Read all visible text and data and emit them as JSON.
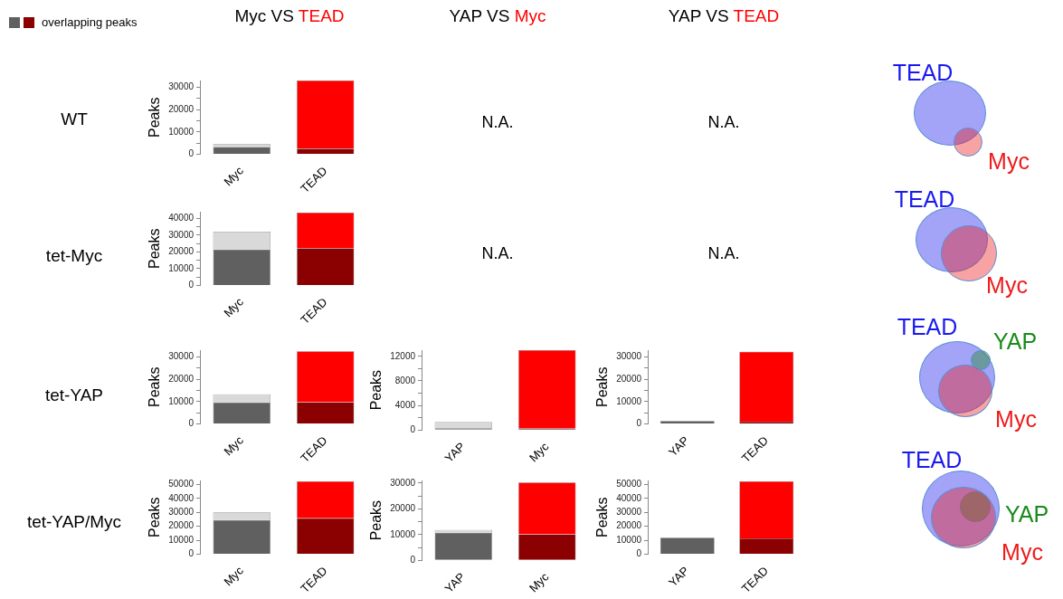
{
  "chart_data": [
    {
      "type": "other",
      "annotations": [
        "overlapping peaks",
        "Myc VS TEAD",
        "YAP VS Myc",
        "YAP VS TEAD",
        "WT",
        "tet-Myc",
        "tet-YAP",
        "tet-YAP/Myc",
        "N.A.",
        "N.A.",
        "N.A.",
        "N.A."
      ],
      "colors": [
        "#606060",
        "#8b0000"
      ]
    },
    {
      "type": "bar",
      "stacked": true,
      "categories": [
        "Myc",
        "TEAD"
      ],
      "ylabel": "Peaks",
      "ylim": [
        0,
        33000
      ],
      "yticks": [
        0,
        {
          "value": 5000,
          "label": null
        },
        10000,
        {
          "value": 15000,
          "label": null
        },
        20000,
        {
          "value": 25000,
          "label": null
        },
        30000
      ],
      "series": [
        {
          "colors": [
            "#606060",
            "#8b0000"
          ],
          "values": [
            3200,
            2500
          ]
        },
        {
          "colors": [
            "#d9d9d9",
            "#ff0000"
          ],
          "values": [
            1300,
            30500
          ]
        }
      ]
    },
    {
      "type": "bar",
      "stacked": true,
      "categories": [
        "Myc",
        "TEAD"
      ],
      "ylabel": "Peaks",
      "ylim": [
        0,
        44000
      ],
      "yticks": [
        0,
        {
          "value": 5000,
          "label": null
        },
        10000,
        {
          "value": 15000,
          "label": null
        },
        20000,
        {
          "value": 25000,
          "label": null
        },
        30000,
        {
          "value": 35000,
          "label": null
        },
        40000
      ],
      "series": [
        {
          "colors": [
            "#606060",
            "#8b0000"
          ],
          "values": [
            21400,
            22300
          ]
        },
        {
          "colors": [
            "#d9d9d9",
            "#ff0000"
          ],
          "values": [
            10700,
            21200
          ]
        }
      ]
    },
    {
      "type": "bar",
      "stacked": true,
      "categories": [
        "Myc",
        "TEAD"
      ],
      "ylabel": "Peaks",
      "ylim": [
        0,
        33000
      ],
      "yticks": [
        0,
        {
          "value": 5000,
          "label": null
        },
        10000,
        {
          "value": 15000,
          "label": null
        },
        20000,
        {
          "value": 25000,
          "label": null
        },
        30000
      ],
      "series": [
        {
          "colors": [
            "#606060",
            "#8b0000"
          ],
          "values": [
            9600,
            9700
          ]
        },
        {
          "colors": [
            "#d9d9d9",
            "#ff0000"
          ],
          "values": [
            3600,
            22800
          ]
        }
      ]
    },
    {
      "type": "bar",
      "stacked": true,
      "categories": [
        "YAP",
        "Myc"
      ],
      "ylabel": "Peaks",
      "ylim": [
        0,
        13000
      ],
      "yticks": [
        0,
        {
          "value": 2000,
          "label": null
        },
        4000,
        {
          "value": 6000,
          "label": null
        },
        8000,
        {
          "value": 10000,
          "label": null
        },
        12000
      ],
      "series": [
        {
          "colors": [
            "#606060",
            "#8b0000"
          ],
          "values": [
            300,
            300
          ]
        },
        {
          "colors": [
            "#d9d9d9",
            "#ff0000"
          ],
          "values": [
            1000,
            12700
          ]
        }
      ]
    },
    {
      "type": "bar",
      "stacked": true,
      "categories": [
        "YAP",
        "TEAD"
      ],
      "ylabel": "Peaks",
      "ylim": [
        0,
        33000
      ],
      "yticks": [
        0,
        {
          "value": 5000,
          "label": null
        },
        10000,
        {
          "value": 15000,
          "label": null
        },
        20000,
        {
          "value": 25000,
          "label": null
        },
        30000
      ],
      "series": [
        {
          "colors": [
            "#606060",
            "#8b0000"
          ],
          "values": [
            1300,
            1000
          ]
        },
        {
          "colors": [
            "#d9d9d9",
            "#ff0000"
          ],
          "values": [
            null,
            31300
          ]
        }
      ]
    },
    {
      "type": "bar",
      "stacked": true,
      "categories": [
        "Myc",
        "TEAD"
      ],
      "ylabel": "Peaks",
      "ylim": [
        0,
        53000
      ],
      "yticks": [
        0,
        10000,
        20000,
        30000,
        40000,
        50000
      ],
      "series": [
        {
          "colors": [
            "#606060",
            "#8b0000"
          ],
          "values": [
            24500,
            25900
          ]
        },
        {
          "colors": [
            "#d9d9d9",
            "#ff0000"
          ],
          "values": [
            5600,
            26400
          ]
        }
      ]
    },
    {
      "type": "bar",
      "stacked": true,
      "categories": [
        "YAP",
        "Myc"
      ],
      "ylabel": "Peaks",
      "ylim": [
        0,
        31000
      ],
      "yticks": [
        0,
        {
          "value": 5000,
          "label": null
        },
        10000,
        {
          "value": 15000,
          "label": null
        },
        20000,
        {
          "value": 25000,
          "label": null
        },
        30000
      ],
      "series": [
        {
          "colors": [
            "#606060",
            "#8b0000"
          ],
          "values": [
            10700,
            10100
          ]
        },
        {
          "colors": [
            "#d9d9d9",
            "#ff0000"
          ],
          "values": [
            1100,
            20100
          ]
        }
      ]
    },
    {
      "type": "bar",
      "stacked": true,
      "categories": [
        "YAP",
        "TEAD"
      ],
      "ylabel": "Peaks",
      "ylim": [
        0,
        53000
      ],
      "yticks": [
        0,
        10000,
        20000,
        30000,
        40000,
        50000
      ],
      "series": [
        {
          "colors": [
            "#606060",
            "#8b0000"
          ],
          "values": [
            11800,
            11400
          ]
        },
        {
          "colors": [
            "#d9d9d9",
            "#ff0000"
          ],
          "values": [
            null,
            40900
          ]
        }
      ]
    },
    {
      "type": "other",
      "annotations": [
        "TEAD",
        "Myc"
      ],
      "colors": [
        "#1a1aee",
        "#ee1a1a"
      ]
    },
    {
      "type": "other",
      "annotations": [
        "TEAD",
        "Myc"
      ],
      "colors": [
        "#1a1aee",
        "#ee1a1a"
      ]
    },
    {
      "type": "other",
      "annotations": [
        "TEAD",
        "YAP",
        "Myc"
      ],
      "colors": [
        "#1a1aee",
        "#1a8a1a",
        "#ee1a1a"
      ]
    },
    {
      "type": "other",
      "annotations": [
        "TEAD",
        "YAP",
        "Myc"
      ],
      "colors": [
        "#1a1aee",
        "#1a8a1a",
        "#ee1a1a"
      ]
    }
  ]
}
